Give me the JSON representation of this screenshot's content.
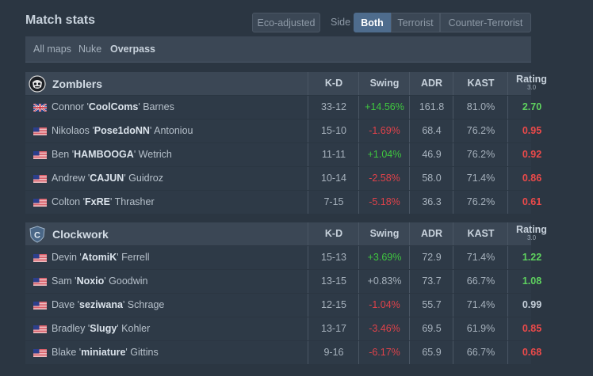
{
  "header": {
    "title": "Match stats",
    "eco_label": "Eco-adjusted",
    "side_label": "Side",
    "sides": [
      "Both",
      "Terrorist",
      "Counter-Terrorist"
    ]
  },
  "maps": [
    "All maps",
    "Nuke",
    "Overpass"
  ],
  "columns": {
    "kd": "K-D",
    "swing": "Swing",
    "adr": "ADR",
    "kast": "KAST",
    "rating": "Rating",
    "rating_sub": "3.0"
  },
  "teams": [
    {
      "name": "Zomblers",
      "logo": "zomblers-logo-icon",
      "players": [
        {
          "first": "Connor '",
          "nick": "CoolComs",
          "last": "' Barnes",
          "flag": "uk-flag-icon",
          "kd": "33-12",
          "swing": "+14.56%",
          "swing_sign": "pos",
          "adr": "161.8",
          "kast": "81.0%",
          "rating": "2.70",
          "rating_class": "rpos"
        },
        {
          "first": "Nikolaos '",
          "nick": "Pose1doNN",
          "last": "' Antoniou",
          "flag": "us-flag-icon",
          "kd": "15-10",
          "swing": "-1.69%",
          "swing_sign": "neg",
          "adr": "68.4",
          "kast": "76.2%",
          "rating": "0.95",
          "rating_class": "rneg"
        },
        {
          "first": "Ben '",
          "nick": "HAMBOOGA",
          "last": "' Wetrich",
          "flag": "us-flag-icon",
          "kd": "11-11",
          "swing": "+1.04%",
          "swing_sign": "pos",
          "adr": "46.9",
          "kast": "76.2%",
          "rating": "0.92",
          "rating_class": "rneg"
        },
        {
          "first": "Andrew '",
          "nick": "CAJUN",
          "last": "' Guidroz",
          "flag": "us-flag-icon",
          "kd": "10-14",
          "swing": "-2.58%",
          "swing_sign": "neg",
          "adr": "58.0",
          "kast": "71.4%",
          "rating": "0.86",
          "rating_class": "rneg"
        },
        {
          "first": "Colton '",
          "nick": "FxRE",
          "last": "' Thrasher",
          "flag": "us-flag-icon",
          "kd": "7-15",
          "swing": "-5.18%",
          "swing_sign": "neg",
          "adr": "36.3",
          "kast": "76.2%",
          "rating": "0.61",
          "rating_class": "rneg"
        }
      ]
    },
    {
      "name": "Clockwork",
      "logo": "clockwork-logo-icon",
      "logo_letter": "C",
      "players": [
        {
          "first": "Devin '",
          "nick": "AtomiK",
          "last": "' Ferrell",
          "flag": "us-flag-icon",
          "kd": "15-13",
          "swing": "+3.69%",
          "swing_sign": "pos",
          "adr": "72.9",
          "kast": "71.4%",
          "rating": "1.22",
          "rating_class": "rpos"
        },
        {
          "first": "Sam '",
          "nick": "Noxio",
          "last": "' Goodwin",
          "flag": "us-flag-icon",
          "kd": "13-15",
          "swing": "+0.83%",
          "swing_sign": "neu",
          "adr": "73.7",
          "kast": "66.7%",
          "rating": "1.08",
          "rating_class": "rpos"
        },
        {
          "first": "Dave '",
          "nick": "seziwana",
          "last": "' Schrage",
          "flag": "us-flag-icon",
          "kd": "12-15",
          "swing": "-1.04%",
          "swing_sign": "neg",
          "adr": "55.7",
          "kast": "71.4%",
          "rating": "0.99",
          "rating_class": "rneu"
        },
        {
          "first": "Bradley '",
          "nick": "Slugy",
          "last": "' Kohler",
          "flag": "us-flag-icon",
          "kd": "13-17",
          "swing": "-3.46%",
          "swing_sign": "neg",
          "adr": "69.5",
          "kast": "61.9%",
          "rating": "0.85",
          "rating_class": "rneg"
        },
        {
          "first": "Blake '",
          "nick": "miniature",
          "last": "' Gittins",
          "flag": "us-flag-icon",
          "kd": "9-16",
          "swing": "-6.17%",
          "swing_sign": "neg",
          "adr": "65.9",
          "kast": "66.7%",
          "rating": "0.68",
          "rating_class": "rneg"
        }
      ]
    }
  ]
}
